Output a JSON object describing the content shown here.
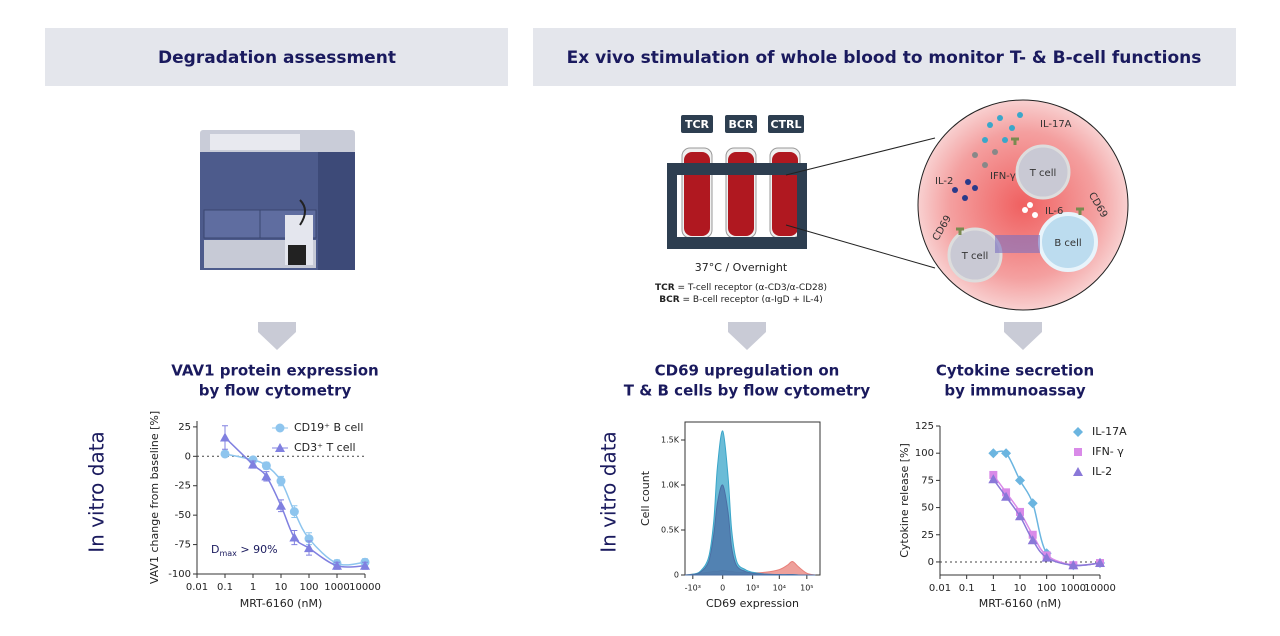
{
  "header": {
    "left_title": "Degradation assessment",
    "right_title": "Ex vivo stimulation of whole blood to monitor T- & B-cell functions"
  },
  "diagram": {
    "tubes": [
      "TCR",
      "BCR",
      "CTRL"
    ],
    "condition": "37°C / Overnight",
    "legend": [
      {
        "abbr": "TCR",
        "text": " = T-cell receptor (α-CD3/α-CD28)"
      },
      {
        "abbr": "BCR",
        "text": " = B-cell receptor (α-IgD + IL-4)"
      }
    ],
    "cells": {
      "il17a": "IL-17A",
      "ifng": "IFN-γ",
      "il2": "IL-2",
      "il6": "IL-6",
      "t_cell_top": "T cell",
      "t_cell_bottom": "T cell",
      "b_cell": "B cell",
      "cd69_left": "CD69",
      "cd69_right": "CD69"
    }
  },
  "side_labels": [
    "In vitro data",
    "In vitro data"
  ],
  "chart_data": [
    {
      "type": "dose_response",
      "title": [
        "VAV1 protein expression",
        "by flow cytometry"
      ],
      "x_label": "MRT-6160 (nM)",
      "y_label": "VAV1 change from baseline [%]",
      "xscale": "log",
      "xlim": [
        0.01,
        10000
      ],
      "xticks": [
        0.01,
        0.1,
        1,
        10,
        100,
        1000,
        10000
      ],
      "ylim": [
        -100,
        30
      ],
      "yticks": [
        25,
        0,
        -25,
        -50,
        -75,
        -100
      ],
      "reference_line": 0,
      "annotation": [
        "D",
        "max",
        " > 90%"
      ],
      "x": [
        0.1,
        1,
        3,
        10,
        30,
        100,
        1000,
        10000
      ],
      "series": [
        {
          "name": "CD19⁺ B cell",
          "color": "#8ec5ee",
          "marker": "circle",
          "values": [
            2,
            -3,
            -8,
            -21,
            -47,
            -70,
            -91,
            -90
          ],
          "errors": [
            2,
            2,
            3,
            4,
            5,
            5,
            3,
            3
          ]
        },
        {
          "name": "CD3⁺ T cell",
          "color": "#8080e0",
          "marker": "triangle",
          "values": [
            16,
            -7,
            -17,
            -42,
            -69,
            -78,
            -93,
            -93
          ],
          "errors": [
            10,
            3,
            4,
            5,
            6,
            6,
            3,
            3
          ]
        }
      ]
    },
    {
      "type": "area",
      "title": [
        "CD69 upregulation on",
        "T & B cells by flow cytometry"
      ],
      "x_label": "CD69 expression",
      "y_label": "Cell count",
      "xscale": "symlog",
      "xlim": [
        -2000,
        300000
      ],
      "xticks": [
        {
          "value": -1000,
          "label": "-10³"
        },
        0,
        {
          "value": 1000,
          "label": "10³"
        },
        {
          "value": 10000,
          "label": "10⁴"
        },
        {
          "value": 100000,
          "label": "10⁵"
        }
      ],
      "ylim": [
        0,
        1700
      ],
      "yticks": [
        0,
        {
          "value": 500,
          "label": "0.5K"
        },
        {
          "value": 1000,
          "label": "1.0K"
        },
        {
          "value": 1500,
          "label": "1.5K"
        }
      ],
      "x": [
        -3000,
        -1000,
        -500,
        -200,
        -100,
        -50,
        0,
        50,
        100,
        200,
        500,
        1000,
        3000,
        10000,
        20000,
        30000,
        50000,
        100000,
        200000
      ],
      "series": [
        {
          "color": "#e8807a",
          "values": [
            0,
            10,
            20,
            30,
            40,
            40,
            50,
            40,
            40,
            30,
            30,
            25,
            30,
            60,
            110,
            150,
            90,
            20,
            0
          ]
        },
        {
          "color": "#3aa6c9",
          "values": [
            0,
            10,
            40,
            200,
            600,
            1200,
            1600,
            1100,
            500,
            150,
            60,
            30,
            10,
            5,
            5,
            5,
            0,
            0,
            0
          ]
        },
        {
          "color": "#4a6fa5",
          "values": [
            0,
            5,
            30,
            150,
            450,
            800,
            1000,
            700,
            300,
            100,
            40,
            20,
            10,
            5,
            5,
            5,
            0,
            0,
            0
          ]
        }
      ]
    },
    {
      "type": "dose_response",
      "title": [
        "Cytokine secretion",
        "by immunoassay"
      ],
      "x_label": "MRT-6160 (nM)",
      "y_label": "Cytokine release [%]",
      "xscale": "log",
      "xlim": [
        0.01,
        10000
      ],
      "xticks": [
        0.01,
        0.1,
        1,
        10,
        100,
        1000,
        10000
      ],
      "ylim": [
        -12,
        125
      ],
      "yticks": [
        0,
        25,
        50,
        75,
        100,
        125
      ],
      "reference_line": 0,
      "x": [
        1,
        3,
        10,
        30,
        100,
        1000,
        10000
      ],
      "series": [
        {
          "name": "IL-17A",
          "color": "#6bb5e0",
          "marker": "diamond",
          "values": [
            100,
            100,
            75,
            54,
            8,
            -3,
            -1
          ]
        },
        {
          "name": "IFN- γ",
          "color": "#d98ae8",
          "marker": "square",
          "values": [
            80,
            64,
            46,
            25,
            6,
            -3,
            -1
          ]
        },
        {
          "name": "IL-2",
          "color": "#8a78d8",
          "marker": "triangle",
          "values": [
            76,
            60,
            42,
            20,
            4,
            -3,
            -1
          ]
        }
      ]
    }
  ]
}
